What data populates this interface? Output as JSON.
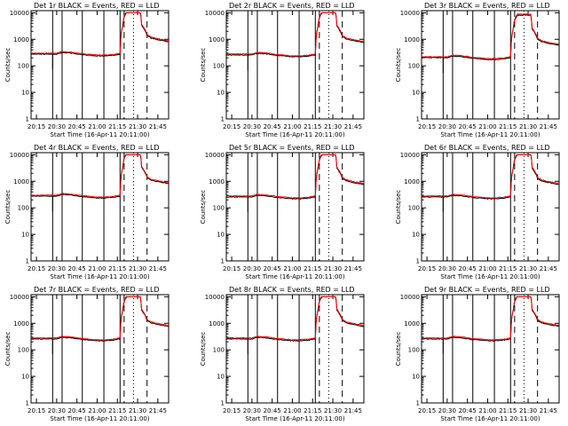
{
  "chart_data": {
    "type": "line",
    "layout": "3x3 grid of log-scale time series panels",
    "shared": {
      "xlabel": "Start Time (16-Apr-11 20:11:00)",
      "ylabel": "Counts/sec",
      "x_tick_labels": [
        "20:15",
        "20:30",
        "20:45",
        "21:00",
        "21:15",
        "21:30",
        "21:45"
      ],
      "x_tick_minutes": [
        15,
        30,
        45,
        60,
        75,
        90,
        105
      ],
      "xlim_minutes": [
        11,
        113
      ],
      "y_tick_labels": [
        "1",
        "10",
        "100",
        "1000",
        "10000"
      ],
      "ylim": [
        1,
        12000
      ],
      "y_scale": "log",
      "solid_vlines_minutes": [
        27,
        34,
        49,
        65,
        77
      ],
      "dashed_vlines_minutes": [
        80,
        97
      ],
      "dotted_vlines_minutes": [
        87
      ],
      "colors": {
        "events": "#000000",
        "lld": "#ff0000"
      },
      "series": [
        {
          "name": "BLACK = Events",
          "color": "#000000"
        },
        {
          "name": "RED = LLD",
          "color": "#ff0000"
        }
      ]
    },
    "panels": [
      {
        "title": "Det 1r BLACK = Events, RED = LLD",
        "base": 300
      },
      {
        "title": "Det 2r BLACK = Events, RED = LLD",
        "base": 280
      },
      {
        "title": "Det 3r BLACK = Events, RED = LLD",
        "base": 220
      },
      {
        "title": "Det 4r BLACK = Events, RED = LLD",
        "base": 300
      },
      {
        "title": "Det 5r BLACK = Events, RED = LLD",
        "base": 280
      },
      {
        "title": "Det 6r BLACK = Events, RED = LLD",
        "base": 280
      },
      {
        "title": "Det 7r BLACK = Events, RED = LLD",
        "base": 280
      },
      {
        "title": "Det 8r BLACK = Events, RED = LLD",
        "base": 280
      },
      {
        "title": "Det 9r BLACK = Events, RED = LLD",
        "base": 280
      }
    ],
    "profile": {
      "x": [
        11,
        15,
        20,
        30,
        34,
        40,
        49,
        55,
        60,
        65,
        72,
        77,
        79,
        80,
        82,
        86,
        87,
        92,
        93,
        97,
        100,
        105,
        112
      ],
      "rel": [
        1.0,
        1.0,
        1.0,
        1.0,
        1.15,
        1.1,
        0.95,
        0.9,
        0.85,
        0.85,
        0.9,
        1.0,
        12,
        25,
        40,
        40,
        40,
        40,
        12,
        5,
        4,
        3.5,
        3.0
      ],
      "cap": 10000
    }
  }
}
